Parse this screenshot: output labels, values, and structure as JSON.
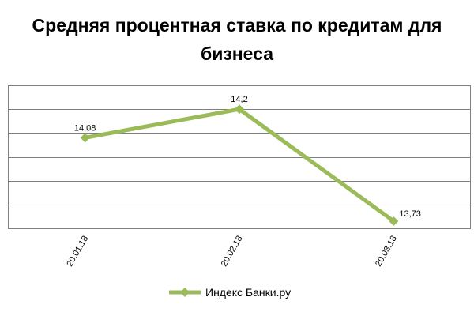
{
  "chart_data": {
    "type": "line",
    "title": "Средняя процентная ставка по кредитам для бизнеса",
    "categories": [
      "20.01.18",
      "20.02.18",
      "20.03.18"
    ],
    "series": [
      {
        "name": "Индекс Банки.ру",
        "values": [
          14.08,
          14.2,
          13.73
        ],
        "labels": [
          "14,08",
          "14,2",
          "13,73"
        ],
        "color": "#9bbb59"
      }
    ],
    "xlabel": "",
    "ylabel": "",
    "ylim": [
      13.7,
      14.3
    ],
    "ytick_step": 0.1,
    "y_tick_labels_shown": false,
    "x_tick_rotation": "vertical-ish (-60deg)",
    "grid": true,
    "legend": "bottom"
  }
}
